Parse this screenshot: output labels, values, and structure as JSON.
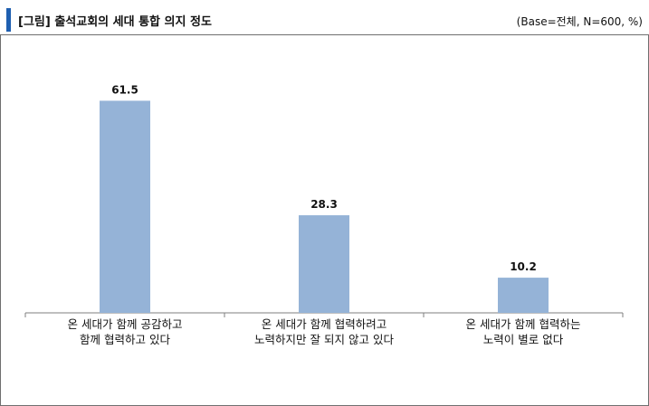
{
  "header": {
    "title": "[그림] 출석교회의 세대 통합 의지 정도",
    "base_note": "(Base=전체, N=600, %)"
  },
  "chart_data": {
    "type": "bar",
    "title": "[그림] 출석교회의 세대 통합 의지 정도",
    "categories": [
      [
        "온 세대가 함께 공감하고",
        "함께 협력하고 있다"
      ],
      [
        "온 세대가 함께 협력하려고",
        "노력하지만 잘 되지 않고 있다"
      ],
      [
        "온 세대가 함께 협력하는",
        "노력이 별로 없다"
      ]
    ],
    "values": [
      61.5,
      28.3,
      10.2
    ],
    "value_labels": [
      "61.5",
      "28.3",
      "10.2"
    ],
    "xlabel": "",
    "ylabel": "",
    "ylim": [
      0,
      70
    ],
    "grid": false,
    "legend": "none",
    "colors": {
      "bar": "#95b3d7",
      "axis": "#7f7f7f",
      "title_mark": "#1f5fb0",
      "border": "#6f6f6f"
    }
  }
}
